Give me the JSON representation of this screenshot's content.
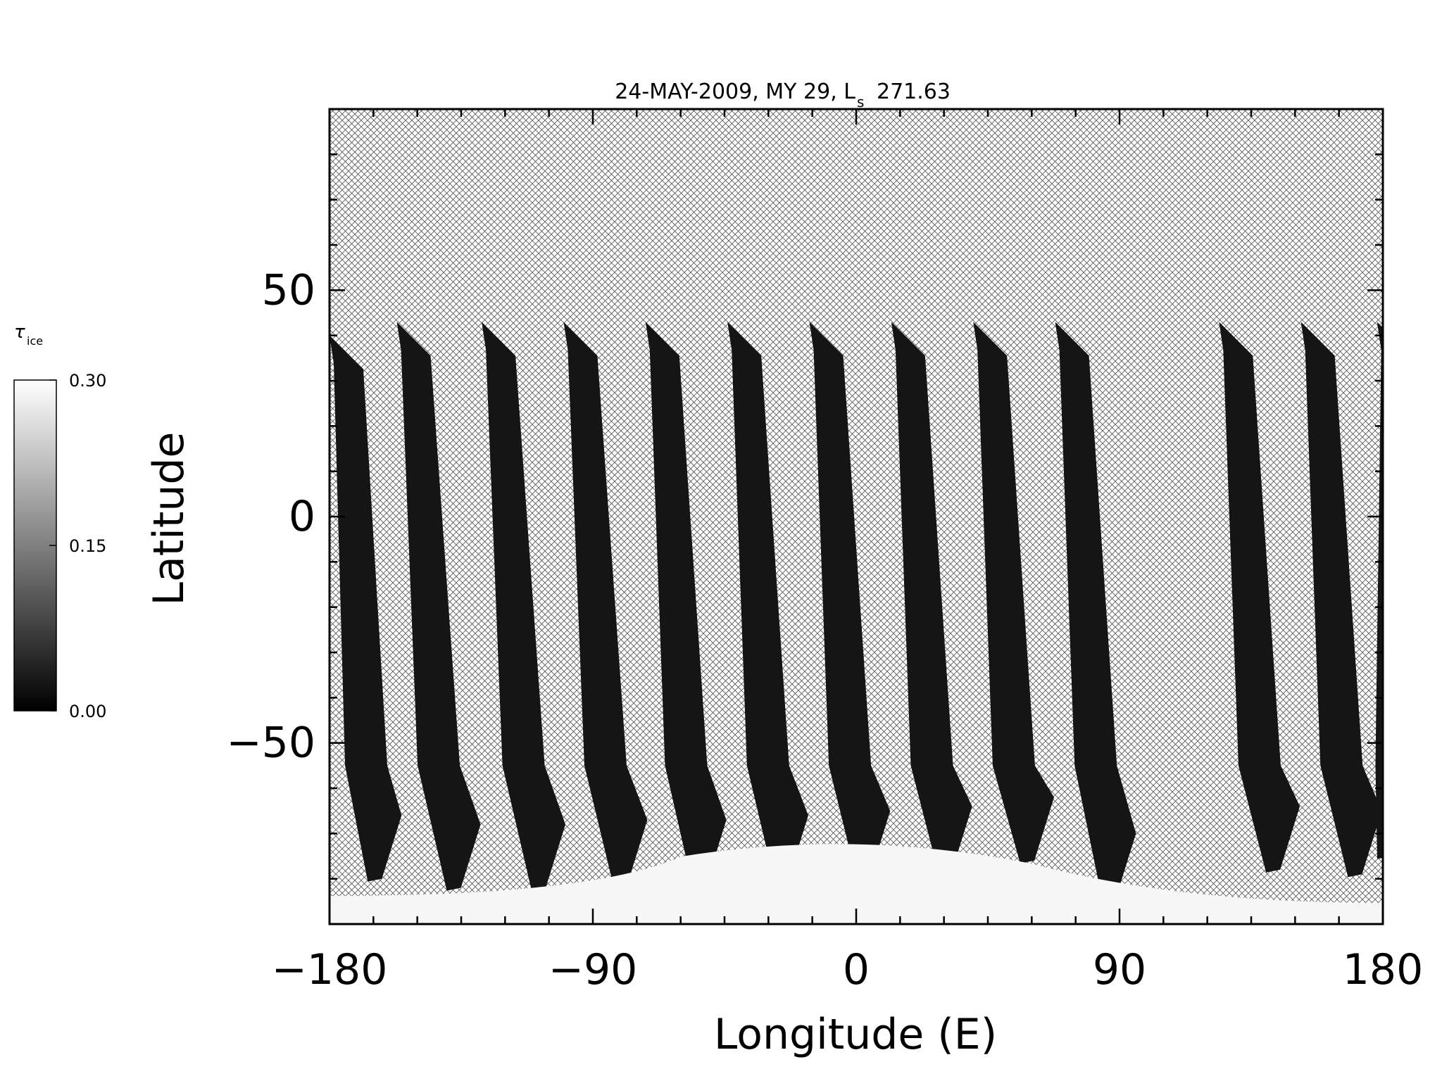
{
  "chart_data": {
    "type": "heatmap",
    "title_main": "24-MAY-2009, MY 29,  L",
    "title_sub": "s",
    "title_value": "271.63",
    "xlabel": "Longitude (E)",
    "ylabel": "Latitude",
    "xlim": [
      -180,
      180
    ],
    "ylim": [
      -90,
      90
    ],
    "x_ticks": [
      -180,
      -90,
      0,
      90,
      180
    ],
    "x_tick_labels": [
      "−180",
      "−90",
      "0",
      "90",
      "180"
    ],
    "y_ticks": [
      -50,
      0,
      50
    ],
    "y_tick_labels": [
      "−50",
      "0",
      "50"
    ],
    "x_minor_step": 15,
    "y_minor_step": 10,
    "no_data_pattern": "crosshatch",
    "colorbar": {
      "label": "τ",
      "label_sub": "ice",
      "min": 0.0,
      "max": 0.3,
      "ticks": [
        0.0,
        0.15,
        0.3
      ],
      "tick_labels": [
        "0.00",
        "0.15",
        "0.30"
      ],
      "colormap": "grayscale",
      "low_color": "#000000",
      "high_color": "#ffffff"
    },
    "swaths": [
      {
        "lon_top": -180,
        "lon_bottom": -165,
        "lat_top": 40,
        "lat_bottom": -80
      },
      {
        "lon_top": -157,
        "lon_bottom": -138,
        "lat_top": 43,
        "lat_bottom": -82
      },
      {
        "lon_top": -128,
        "lon_bottom": -109,
        "lat_top": 43,
        "lat_bottom": -82
      },
      {
        "lon_top": -100,
        "lon_bottom": -81,
        "lat_top": 43,
        "lat_bottom": -81
      },
      {
        "lon_top": -72,
        "lon_bottom": -54,
        "lat_top": 43,
        "lat_bottom": -81
      },
      {
        "lon_top": -44,
        "lon_bottom": -26,
        "lat_top": 43,
        "lat_bottom": -80
      },
      {
        "lon_top": -16,
        "lon_bottom": 2,
        "lat_top": 43,
        "lat_bottom": -79
      },
      {
        "lon_top": 12,
        "lon_bottom": 30,
        "lat_top": 43,
        "lat_bottom": -78
      },
      {
        "lon_top": 40,
        "lon_bottom": 58,
        "lat_top": 43,
        "lat_bottom": -76
      },
      {
        "lon_top": 68,
        "lon_bottom": 86,
        "lat_top": 43,
        "lat_bottom": -84
      },
      {
        "lon_top": 124,
        "lon_bottom": 142,
        "lat_top": 43,
        "lat_bottom": -78
      },
      {
        "lon_top": 152,
        "lon_bottom": 170,
        "lat_top": 43,
        "lat_bottom": -79
      },
      {
        "lon_top": 178,
        "lon_bottom": 180,
        "lat_top": 43,
        "lat_bottom": -75
      }
    ],
    "features": [
      {
        "kind": "south-polar-ice-cap",
        "lon_range": [
          -180,
          180
        ],
        "lat_range": [
          -90,
          -72
        ],
        "tau": 0.3
      }
    ]
  }
}
